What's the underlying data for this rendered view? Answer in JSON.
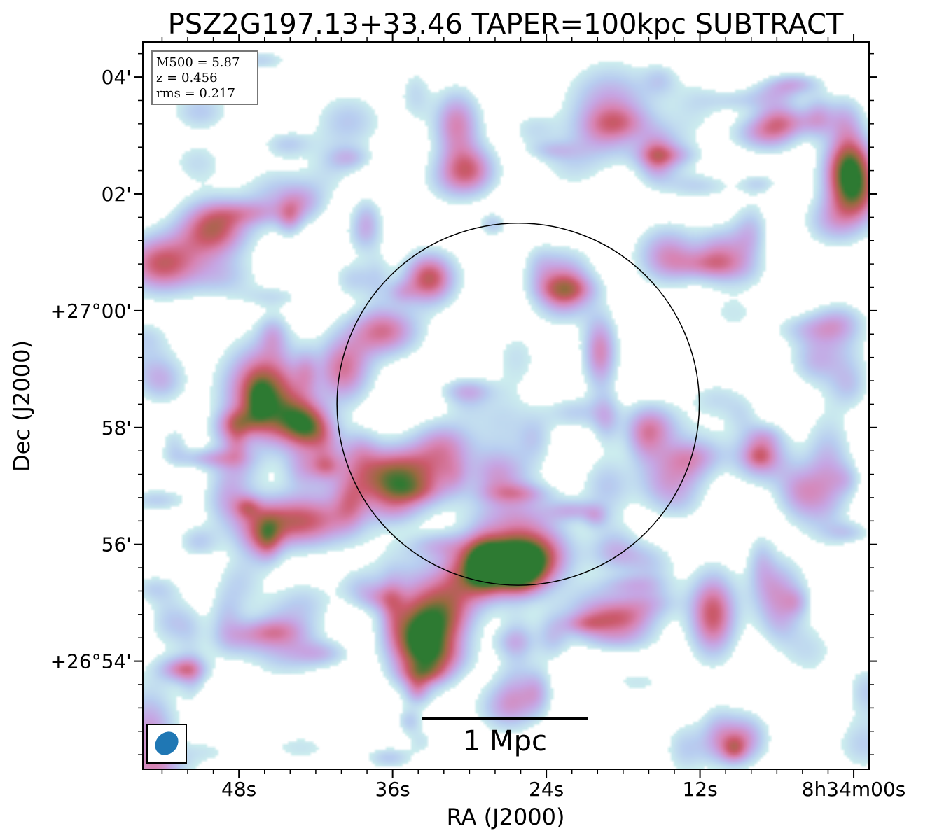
{
  "chart_data": {
    "type": "heatmap",
    "title": "PSZ2G197.13+33.46 TAPER=100kpc SUBTRACT",
    "xlabel": "RA (J2000)",
    "ylabel": "Dec (J2000)",
    "x_ticks": [
      {
        "label": "48s",
        "ra_s": 48
      },
      {
        "label": "36s",
        "ra_s": 36
      },
      {
        "label": "24s",
        "ra_s": 24
      },
      {
        "label": "12s",
        "ra_s": 12
      },
      {
        "label": "8h34m00s",
        "ra_s": 0
      }
    ],
    "y_ticks": [
      {
        "label": "04'",
        "dec_arcmin": 4
      },
      {
        "label": "02'",
        "dec_arcmin": 2
      },
      {
        "label": "+27°00'",
        "dec_arcmin": 0
      },
      {
        "label": "58'",
        "dec_arcmin": -2
      },
      {
        "label": "56'",
        "dec_arcmin": -4
      },
      {
        "label": "+26°54'",
        "dec_arcmin": -6
      }
    ],
    "x_range_s": [
      55.5,
      -1.2
    ],
    "y_range_arcmin": [
      -7.85,
      4.6
    ],
    "info": [
      "M500 = 5.87",
      "z = 0.456",
      "rms = 0.217"
    ],
    "scalebar_label": "1 Mpc",
    "circle": {
      "center_ra_s": 26.2,
      "center_dec_arcmin": -1.6,
      "radius_arcmin": 3.1
    },
    "colormap": [
      "#ffffff",
      "#cdeeee",
      "#b8cdf0",
      "#c6a6e4",
      "#d884b4",
      "#cc5a6c",
      "#9a6a40",
      "#2d7a32"
    ],
    "sources": [
      {
        "name": "src-top-right",
        "ra_s": 0.3,
        "dec_arcmin": 2.4,
        "sx": 0.32,
        "sy": 0.4,
        "peak": 1.0
      },
      {
        "name": "src-upper-left-1",
        "ra_s": 50.0,
        "dec_arcmin": 1.4,
        "sx": 0.45,
        "sy": 0.35,
        "peak": 0.75
      },
      {
        "name": "src-upper-left-2",
        "ra_s": 54.0,
        "dec_arcmin": 0.8,
        "sx": 0.5,
        "sy": 0.35,
        "peak": 0.72
      },
      {
        "name": "src-west-bright",
        "ra_s": 46.0,
        "dec_arcmin": -1.4,
        "sx": 0.5,
        "sy": 0.55,
        "peak": 0.9
      },
      {
        "name": "src-west-faint",
        "ra_s": 39.8,
        "dec_arcmin": -1.0,
        "sx": 0.35,
        "sy": 0.4,
        "peak": 0.6
      },
      {
        "name": "src-west-lower",
        "ra_s": 43.5,
        "dec_arcmin": -1.9,
        "sx": 0.4,
        "sy": 0.3,
        "peak": 0.45
      },
      {
        "name": "src-inner-north",
        "ra_s": 36.7,
        "dec_arcmin": -0.35,
        "sx": 0.45,
        "sy": 0.3,
        "peak": 0.62
      },
      {
        "name": "src-inner-nw",
        "ra_s": 33.2,
        "dec_arcmin": 0.55,
        "sx": 0.3,
        "sy": 0.28,
        "peak": 0.5
      },
      {
        "name": "src-inner-bright",
        "ra_s": 35.7,
        "dec_arcmin": -2.85,
        "sx": 0.65,
        "sy": 0.35,
        "peak": 0.92
      },
      {
        "name": "src-inner-bright-ext",
        "ra_s": 32.0,
        "dec_arcmin": -2.3,
        "sx": 0.4,
        "sy": 0.3,
        "peak": 0.45
      },
      {
        "name": "src-west-elongated",
        "ra_s": 43.5,
        "dec_arcmin": -3.6,
        "sx": 0.75,
        "sy": 0.32,
        "peak": 0.75
      },
      {
        "name": "src-south-bright",
        "ra_s": 28.5,
        "dec_arcmin": -4.4,
        "sx": 0.5,
        "sy": 0.35,
        "peak": 1.0
      },
      {
        "name": "src-south-second",
        "ra_s": 25.0,
        "dec_arcmin": -4.2,
        "sx": 0.48,
        "sy": 0.35,
        "peak": 0.78
      },
      {
        "name": "src-south-lower",
        "ra_s": 33.7,
        "dec_arcmin": -5.6,
        "sx": 0.4,
        "sy": 0.55,
        "peak": 0.88
      },
      {
        "name": "src-south-bridge",
        "ra_s": 31.5,
        "dec_arcmin": -5.0,
        "sx": 0.4,
        "sy": 0.4,
        "peak": 0.45
      },
      {
        "name": "src-top-mid",
        "ra_s": 31.0,
        "dec_arcmin": 3.2,
        "sx": 0.3,
        "sy": 0.4,
        "peak": 0.55
      },
      {
        "name": "src-top-mid-2",
        "ra_s": 30.0,
        "dec_arcmin": 2.4,
        "sx": 0.35,
        "sy": 0.3,
        "peak": 0.58
      },
      {
        "name": "src-top-center",
        "ra_s": 19.0,
        "dec_arcmin": 3.5,
        "sx": 0.55,
        "sy": 0.5,
        "peak": 0.45
      },
      {
        "name": "src-inner-ne",
        "ra_s": 19.8,
        "dec_arcmin": -0.7,
        "sx": 0.22,
        "sy": 0.45,
        "peak": 0.55
      },
      {
        "name": "src-inner-upper",
        "ra_s": 22.5,
        "dec_arcmin": 0.55,
        "sx": 0.35,
        "sy": 0.35,
        "peak": 0.45
      },
      {
        "name": "src-east-mid",
        "ra_s": 14.5,
        "dec_arcmin": 0.95,
        "sx": 0.4,
        "sy": 0.35,
        "peak": 0.5
      },
      {
        "name": "src-east-mid-2",
        "ra_s": 15.8,
        "dec_arcmin": -2.0,
        "sx": 0.35,
        "sy": 0.3,
        "peak": 0.5
      },
      {
        "name": "src-east-low",
        "ra_s": 7.2,
        "dec_arcmin": -2.5,
        "sx": 0.35,
        "sy": 0.3,
        "peak": 0.52
      },
      {
        "name": "src-se-1",
        "ra_s": 11.0,
        "dec_arcmin": -5.2,
        "sx": 0.3,
        "sy": 0.5,
        "peak": 0.72
      },
      {
        "name": "src-se-2",
        "ra_s": 6.0,
        "dec_arcmin": -4.8,
        "sx": 0.35,
        "sy": 0.4,
        "peak": 0.45
      },
      {
        "name": "src-top-right-2",
        "ra_s": 6.0,
        "dec_arcmin": 3.2,
        "sx": 0.3,
        "sy": 0.3,
        "peak": 0.45
      },
      {
        "name": "src-left-low",
        "ra_s": 55.0,
        "dec_arcmin": -7.3,
        "sx": 0.35,
        "sy": 0.6,
        "peak": 0.5
      },
      {
        "name": "src-bottom-mid",
        "ra_s": 27.0,
        "dec_arcmin": -6.8,
        "sx": 0.4,
        "sy": 0.3,
        "peak": 0.38
      },
      {
        "name": "src-bottom-right",
        "ra_s": 8.5,
        "dec_arcmin": -7.3,
        "sx": 0.3,
        "sy": 0.3,
        "peak": 0.42
      },
      {
        "name": "src-sw-low",
        "ra_s": 44.5,
        "dec_arcmin": -5.6,
        "sx": 0.45,
        "sy": 0.45,
        "peak": 0.38
      },
      {
        "name": "src-south-center",
        "ra_s": 20.0,
        "dec_arcmin": -5.1,
        "sx": 0.5,
        "sy": 0.3,
        "peak": 0.35
      },
      {
        "name": "src-east-upper",
        "ra_s": 10.5,
        "dec_arcmin": 1.0,
        "sx": 0.3,
        "sy": 0.3,
        "peak": 0.4
      },
      {
        "name": "src-far-east",
        "ra_s": 2.0,
        "dec_arcmin": -2.8,
        "sx": 0.3,
        "sy": 0.7,
        "peak": 0.4
      },
      {
        "name": "src-inner-south",
        "ra_s": 27.0,
        "dec_arcmin": -2.8,
        "sx": 0.4,
        "sy": 0.35,
        "peak": 0.3
      },
      {
        "name": "src-ring-south",
        "ra_s": 26.5,
        "dec_arcmin": -3.5,
        "sx": 0.6,
        "sy": 0.3,
        "peak": 0.32
      }
    ]
  }
}
